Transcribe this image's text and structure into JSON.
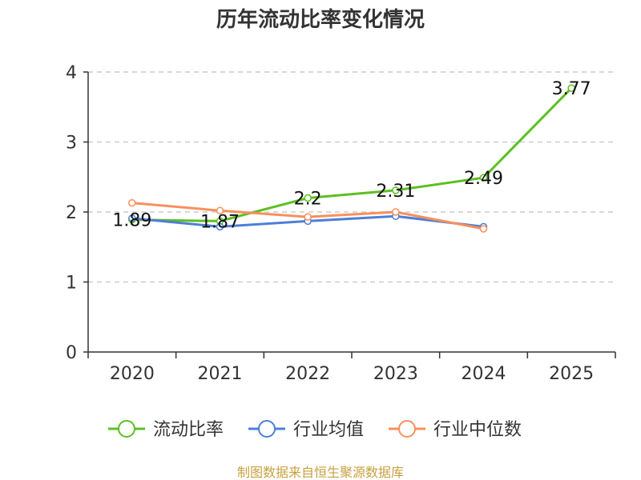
{
  "chart_data": {
    "type": "line",
    "title": "历年流动比率变化情况",
    "categories": [
      "2020",
      "2021",
      "2022",
      "2023",
      "2024",
      "2025"
    ],
    "ylim": [
      0,
      4
    ],
    "yticks": [
      "0",
      "1",
      "2",
      "3",
      "4"
    ],
    "grid": true,
    "legend_position": "bottom",
    "series": [
      {
        "name": "流动比率",
        "color": "#5dbf23",
        "values": [
          1.89,
          1.87,
          2.2,
          2.31,
          2.49,
          3.77
        ],
        "labels": [
          "1.89",
          "1.87",
          "2.2",
          "2.31",
          "2.49",
          "3.77"
        ]
      },
      {
        "name": "行业均值",
        "color": "#4d7fd8",
        "values": [
          1.91,
          1.79,
          1.87,
          1.94,
          1.79,
          null
        ]
      },
      {
        "name": "行业中位数",
        "color": "#f7905c",
        "values": [
          2.13,
          2.02,
          1.93,
          2.0,
          1.76,
          null
        ]
      }
    ]
  },
  "source": "制图数据来自恒生聚源数据库"
}
